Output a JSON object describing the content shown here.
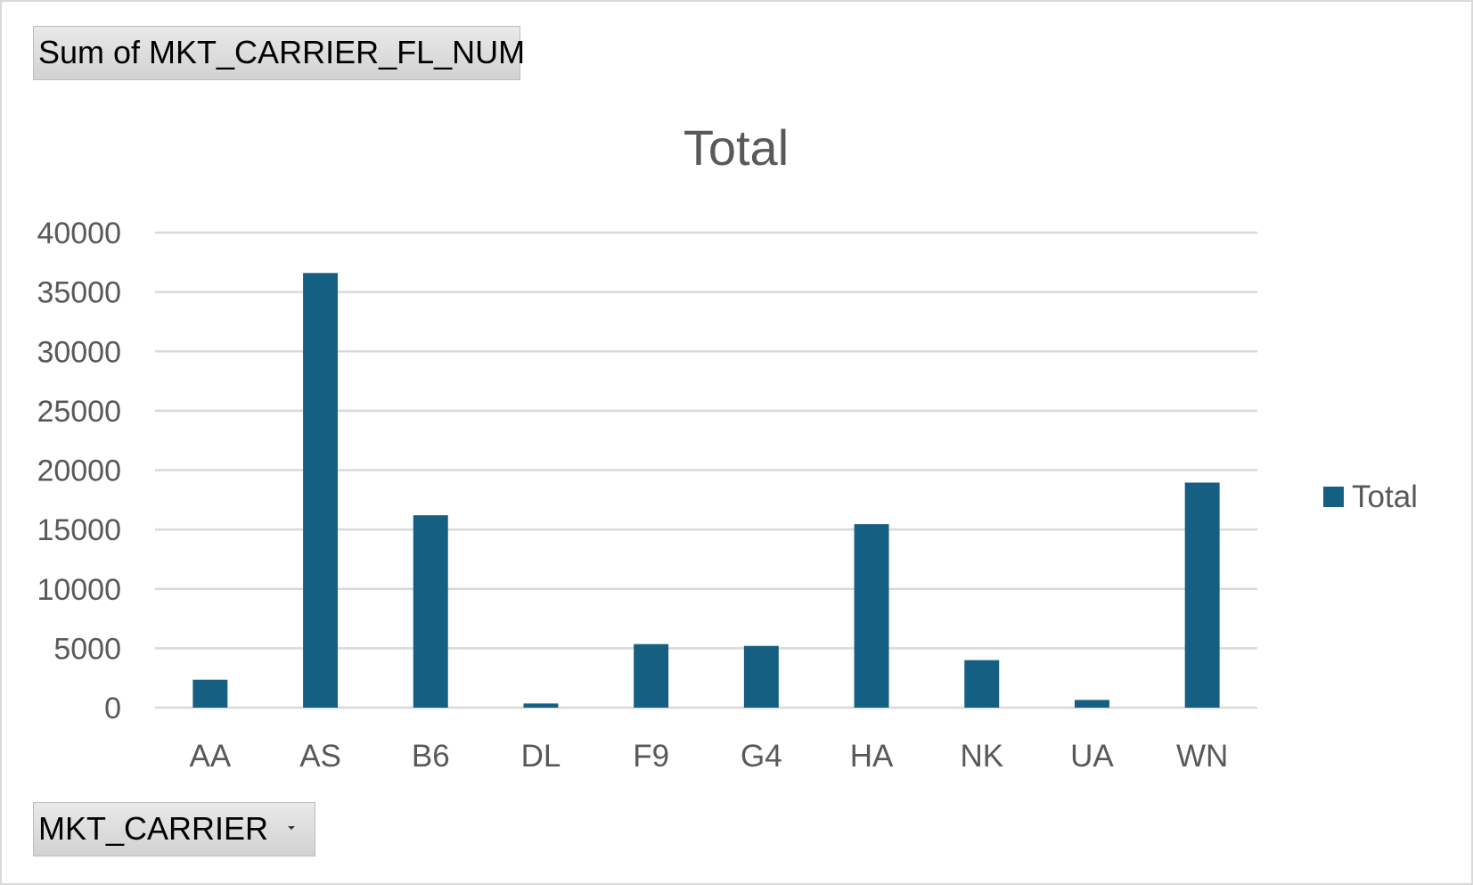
{
  "pivot": {
    "value_field_label": "Sum of MKT_CARRIER_FL_NUM",
    "axis_field_label": "MKT_CARRIER"
  },
  "chart_data": {
    "type": "bar",
    "title": "Total",
    "xlabel": "",
    "ylabel": "",
    "categories": [
      "AA",
      "AS",
      "B6",
      "DL",
      "F9",
      "G4",
      "HA",
      "NK",
      "UA",
      "WN"
    ],
    "series": [
      {
        "name": "Total",
        "values": [
          2350,
          36600,
          16200,
          350,
          5350,
          5200,
          15450,
          4000,
          650,
          18950
        ],
        "color": "#156082"
      }
    ],
    "ylim": [
      0,
      40000
    ],
    "yticks": [
      "0",
      "5000",
      "10000",
      "15000",
      "20000",
      "25000",
      "30000",
      "35000",
      "40000"
    ],
    "grid": true,
    "legend_position": "right"
  }
}
